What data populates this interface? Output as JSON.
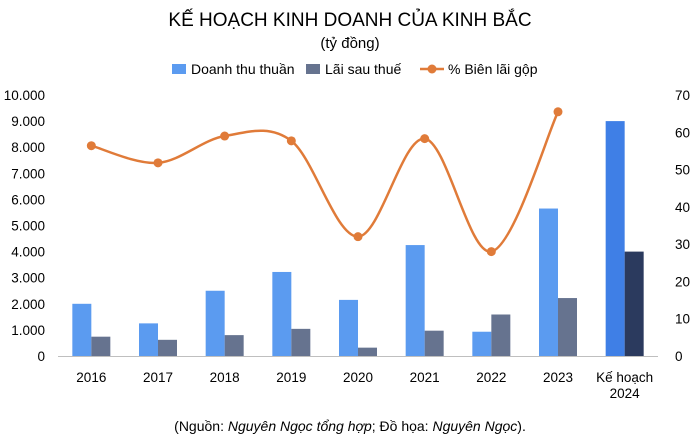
{
  "chart_data": {
    "type": "bar+line",
    "title": "KẾ HOẠCH KINH DOANH CỦA KINH BẮC",
    "subtitle": "(tỷ đồng)",
    "categories": [
      "2016",
      "2017",
      "2018",
      "2019",
      "2020",
      "2021",
      "2022",
      "2023",
      "Kế hoạch 2024"
    ],
    "category_lines": [
      [
        "2016"
      ],
      [
        "2017"
      ],
      [
        "2018"
      ],
      [
        "2019"
      ],
      [
        "2020"
      ],
      [
        "2021"
      ],
      [
        "2022"
      ],
      [
        "2023"
      ],
      [
        "Kế hoạch",
        "2024"
      ]
    ],
    "series": [
      {
        "name": "Doanh thu thuần",
        "type": "bar",
        "axis": "left",
        "color": "#5b9bf0",
        "highlight_color": "#3f7fe6",
        "values": [
          2000,
          1250,
          2500,
          3220,
          2150,
          4250,
          930,
          5650,
          9000
        ]
      },
      {
        "name": "Lãi sau thuế",
        "type": "bar",
        "axis": "left",
        "color": "#66738f",
        "highlight_color": "#2b3a5e",
        "values": [
          740,
          620,
          800,
          1040,
          320,
          970,
          1590,
          2220,
          4000
        ]
      },
      {
        "name": "% Biên lãi gộp",
        "type": "line",
        "axis": "right",
        "color": "#e07b39",
        "values": [
          56.4,
          51.8,
          59.0,
          57.7,
          32.0,
          58.3,
          28.0,
          65.5,
          null
        ]
      }
    ],
    "y_left": {
      "min": 0,
      "max": 10000,
      "ticks": [
        "0",
        "1.000",
        "2.000",
        "3.000",
        "4.000",
        "5.000",
        "6.000",
        "7.000",
        "8.000",
        "9.000",
        "10.000"
      ]
    },
    "y_right": {
      "min": 0,
      "max": 70,
      "ticks": [
        "0",
        "10",
        "20",
        "30",
        "40",
        "50",
        "60",
        "70"
      ]
    },
    "grid": false,
    "legend_position": "top-center",
    "highlighted_category": "Kế hoạch 2024"
  },
  "source": {
    "open": "(Nguồn: ",
    "author": "Nguyên Ngọc tổng hợp",
    "middle": "; Đồ họa: ",
    "designer": "Nguyên Ngọc",
    "close": ")."
  }
}
